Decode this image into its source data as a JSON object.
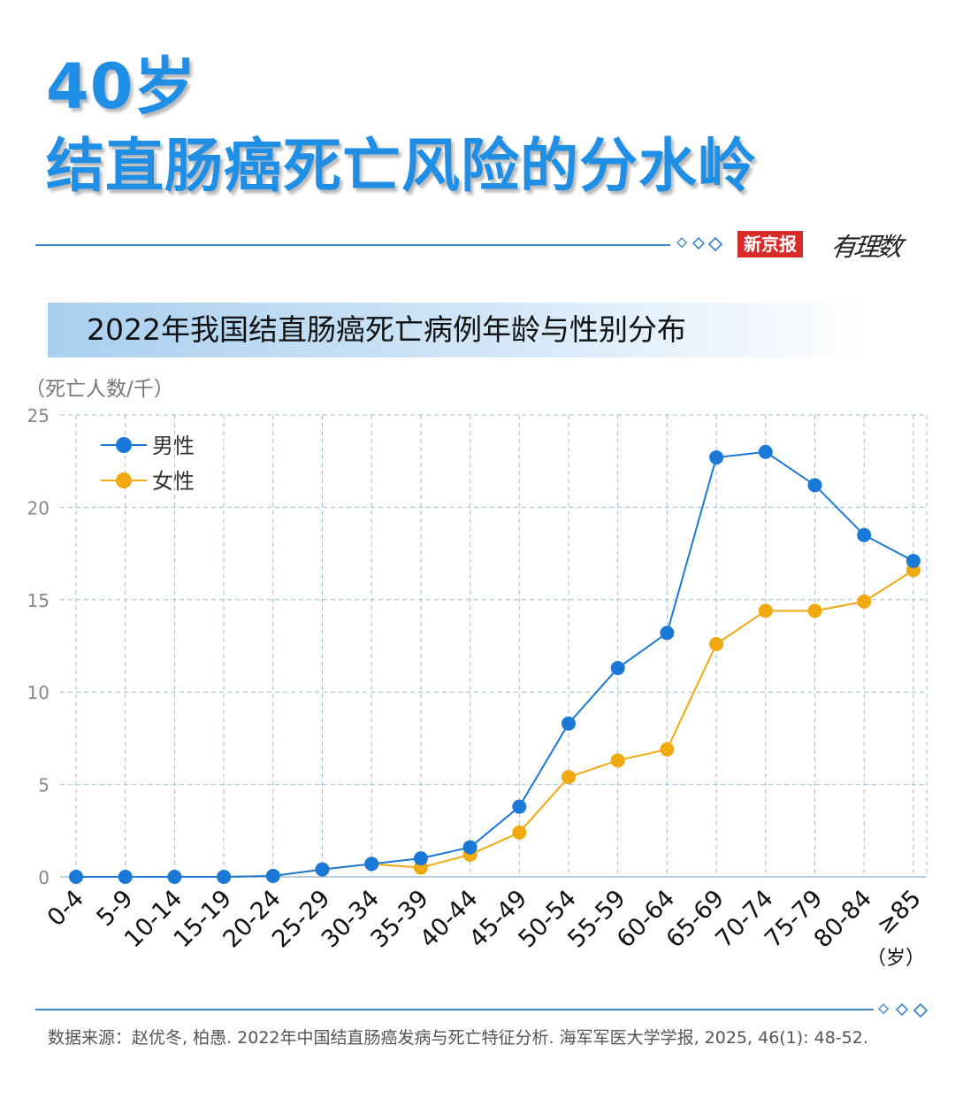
{
  "headline": {
    "line1": "40岁",
    "line2": "结直肠癌死亡风险的分水岭"
  },
  "brand": {
    "name": "新京报",
    "column": "有理数"
  },
  "subtitle": "2022年我国结直肠癌死亡病例年龄与性别分布",
  "source": "数据来源：赵优冬, 柏愚. 2022年中国结直肠癌发病与死亡特征分析. 海军军医大学学报, 2025, 46(1): 48-52.",
  "colors": {
    "accent": "#1f8fe6",
    "male": "#1a79d6",
    "female": "#f0aa10",
    "grid": "#9ebdd2",
    "rule": "#3f86c8"
  },
  "chart_data": {
    "type": "line",
    "title": "2022年我国结直肠癌死亡病例年龄与性别分布",
    "ylabel": "（死亡人数/千）",
    "xlabel": "（岁）",
    "ylim": [
      0,
      25
    ],
    "yticks": [
      0,
      5,
      10,
      15,
      20,
      25
    ],
    "grid": true,
    "legend_position": "top-left",
    "categories": [
      "0-4",
      "5-9",
      "10-14",
      "15-19",
      "20-24",
      "25-29",
      "30-34",
      "35-39",
      "40-44",
      "45-49",
      "50-54",
      "55-59",
      "60-64",
      "65-69",
      "70-74",
      "75-79",
      "80-84",
      "≥85"
    ],
    "series": [
      {
        "name": "男性",
        "color": "#1a79d6",
        "values": [
          0,
          0,
          0,
          0,
          0.05,
          0.4,
          0.7,
          1.0,
          1.6,
          3.8,
          8.3,
          11.3,
          13.2,
          22.7,
          23.0,
          21.2,
          18.5,
          17.1
        ]
      },
      {
        "name": "女性",
        "color": "#f0aa10",
        "values": [
          0,
          0,
          0,
          0,
          0.05,
          0.4,
          0.7,
          0.5,
          1.2,
          2.4,
          5.4,
          6.3,
          6.9,
          12.6,
          14.4,
          14.4,
          14.9,
          16.6
        ]
      }
    ]
  }
}
